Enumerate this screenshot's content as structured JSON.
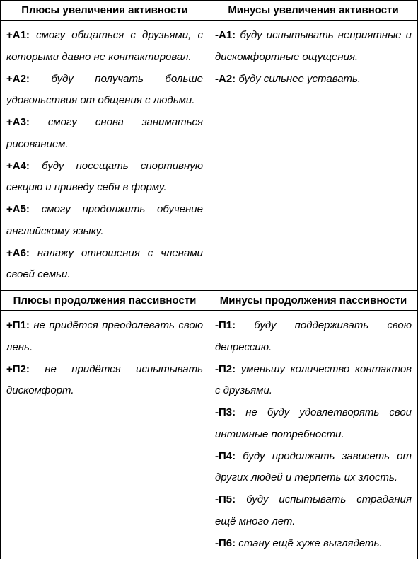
{
  "headers": {
    "top_left": "Плюсы увеличения активности",
    "top_right": "Минусы увеличения активности",
    "bottom_left": "Плюсы продолжения пассивности",
    "bottom_right": "Минусы продолжения пассивности"
  },
  "cells": {
    "activity_plus": [
      {
        "label": "+А1:",
        "text": "смогу общаться с друзьями, с которыми давно не контактировал."
      },
      {
        "label": "+А2:",
        "text": "буду получать больше удовольствия от общения с людьми."
      },
      {
        "label": "+А3:",
        "text": "смогу снова заниматься рисованием."
      },
      {
        "label": "+А4:",
        "text": "буду посещать спортивную секцию и приведу себя в форму."
      },
      {
        "label": "+А5:",
        "text": "смогу продолжить обучение английскому языку."
      },
      {
        "label": "+А6:",
        "text": "налажу отношения с членами своей семьи."
      }
    ],
    "activity_minus": [
      {
        "label": "-А1:",
        "text": "буду испытывать неприятные и дискомфортные ощущения."
      },
      {
        "label": "-А2:",
        "text": "буду сильнее уставать."
      }
    ],
    "passivity_plus": [
      {
        "label": "+П1:",
        "text": "не придётся преодолевать свою лень."
      },
      {
        "label": "+П2:",
        "text": "не придётся испытывать дискомфорт."
      }
    ],
    "passivity_minus": [
      {
        "label": "-П1:",
        "text": "буду поддерживать свою депрессию."
      },
      {
        "label": "-П2:",
        "text": "уменьшу количество контактов с друзьями."
      },
      {
        "label": "-П3:",
        "text": "не буду удовлетворять свои интимные потребности."
      },
      {
        "label": "-П4:",
        "text": "буду продолжать зависеть от других людей и терпеть их злость."
      },
      {
        "label": "-П5:",
        "text": "буду испытывать страдания ещё много лет."
      },
      {
        "label": "-П6:",
        "text": "стану ещё хуже выглядеть."
      }
    ]
  },
  "colors": {
    "border": "#000000",
    "background": "#ffffff",
    "text": "#000000"
  },
  "typography": {
    "header_fontsize": 15,
    "body_fontsize": 15,
    "body_lineheight": 2.05,
    "font_family": "Arial"
  }
}
